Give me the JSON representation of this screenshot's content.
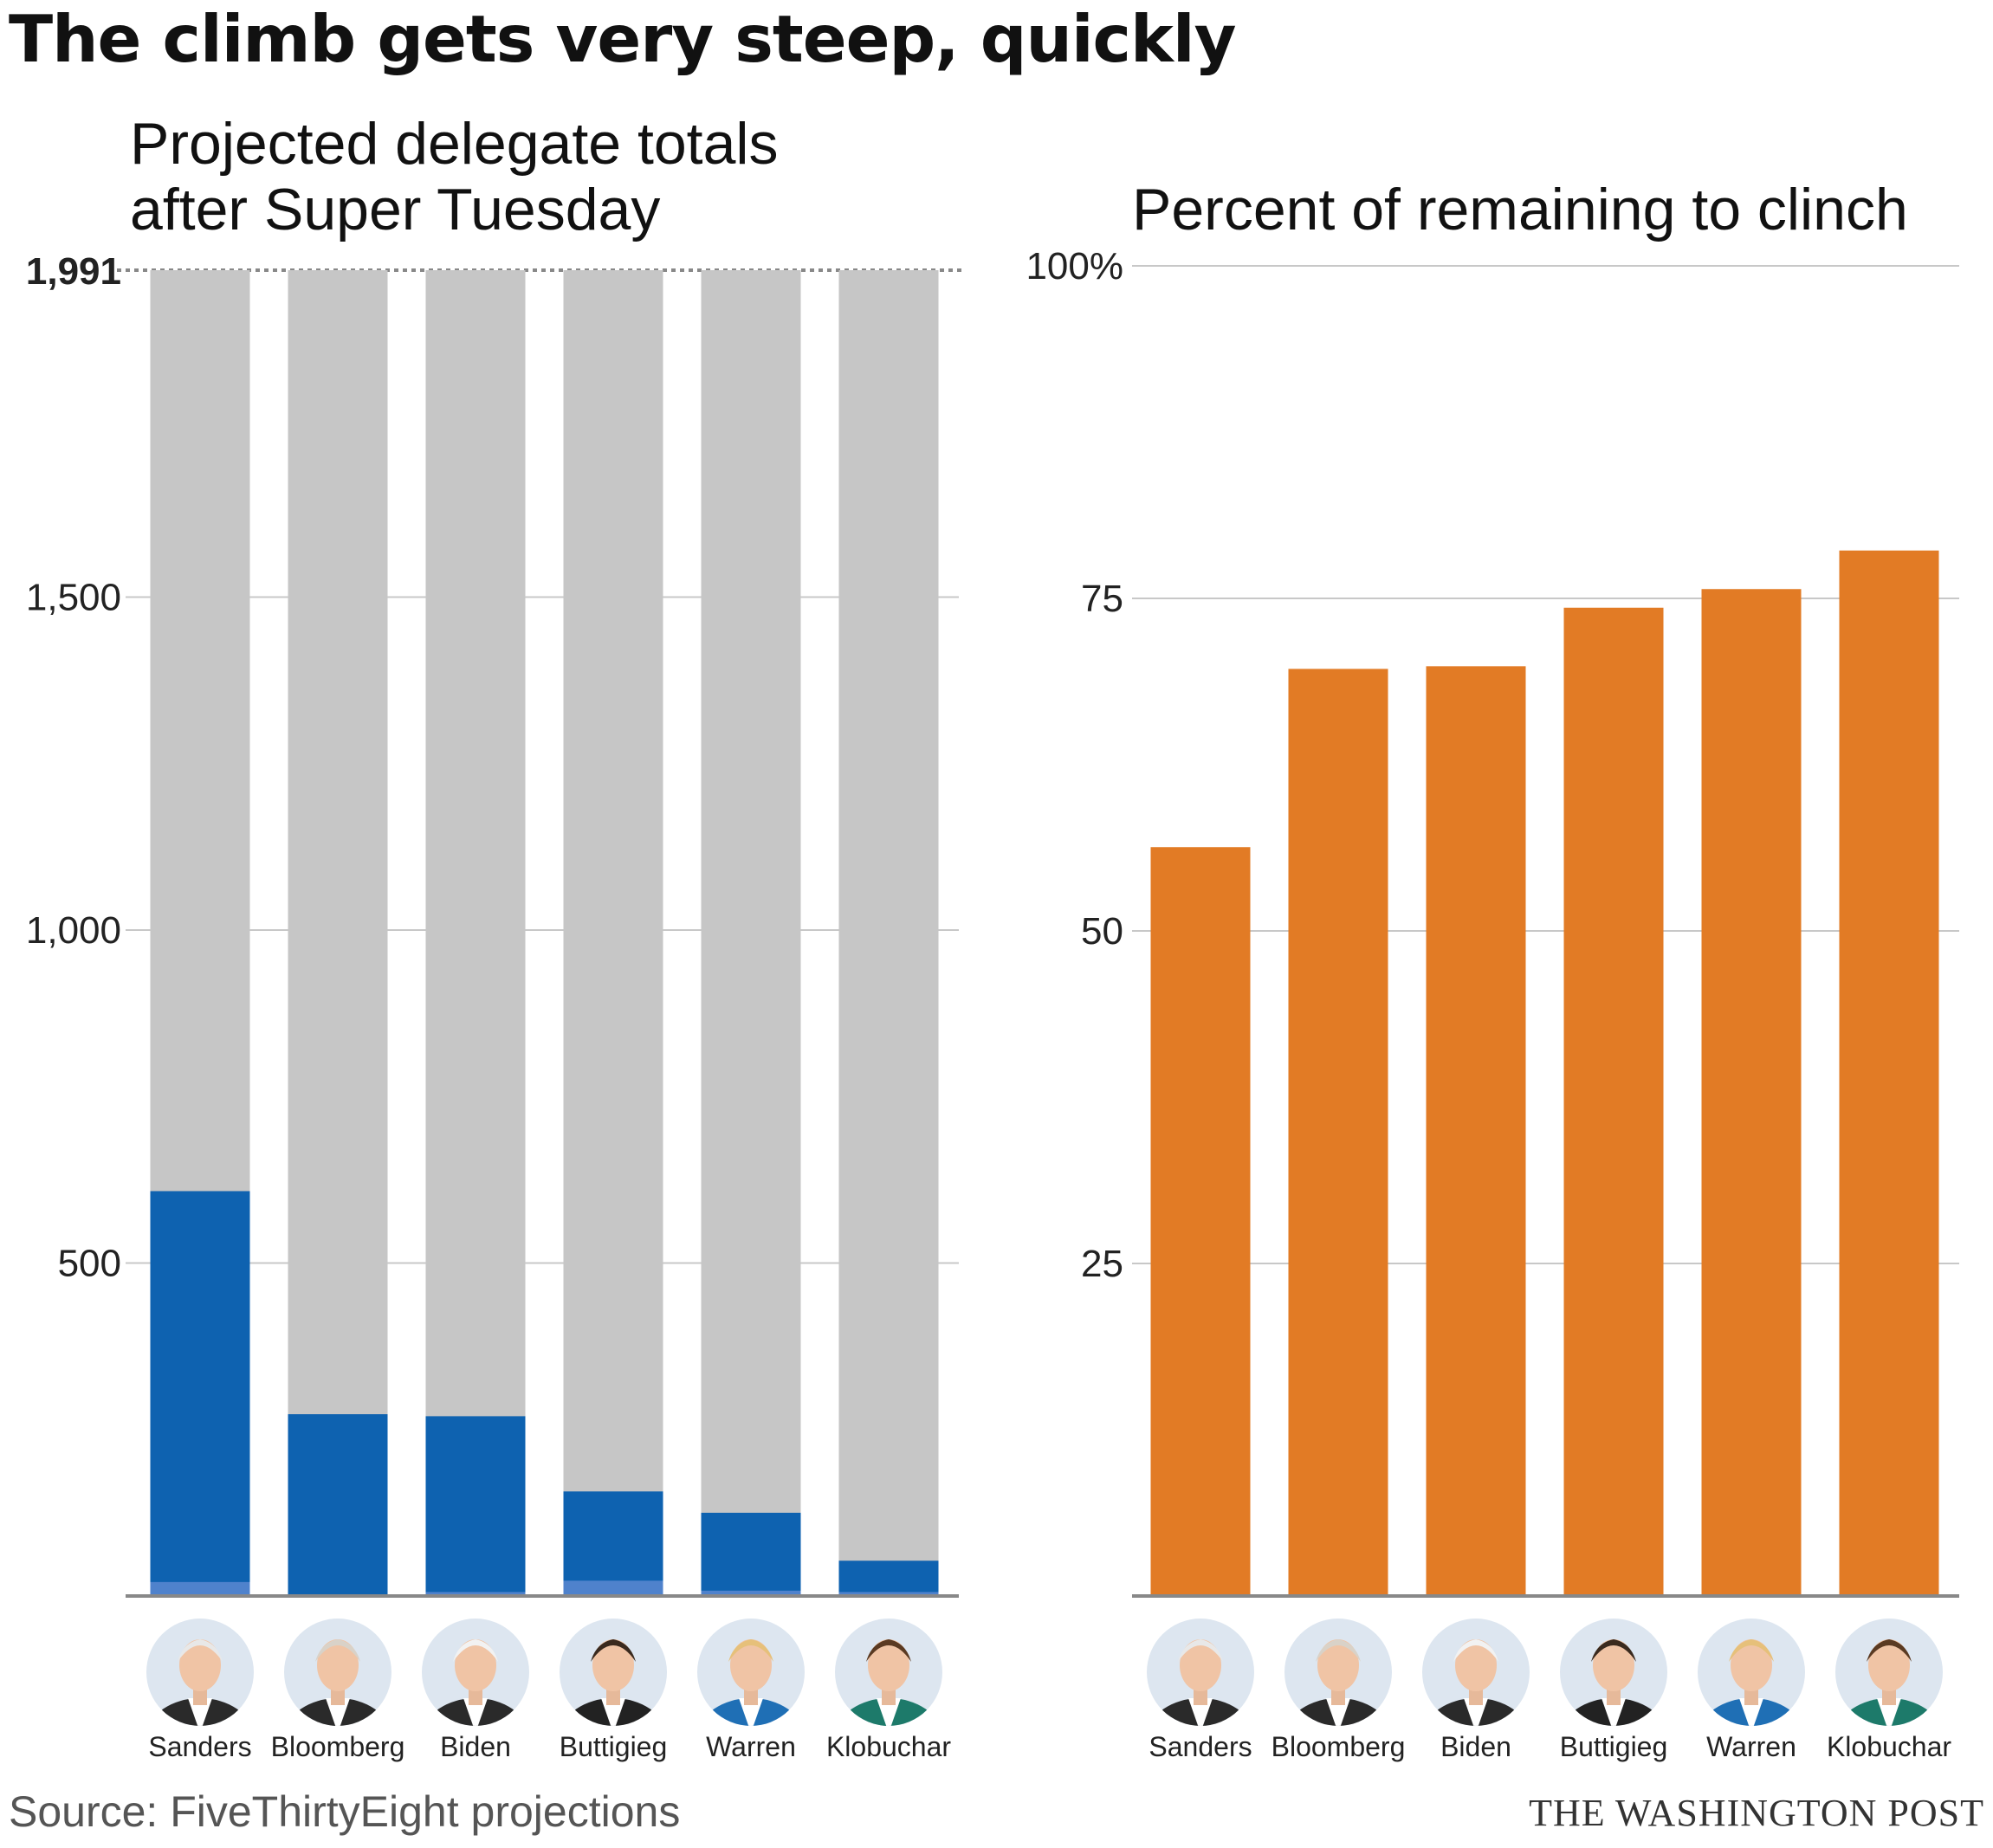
{
  "headline": "The climb gets very steep, quickly",
  "source": "Source: FiveThirtyEight projections",
  "credit": "THE WASHINGTON POST",
  "colors": {
    "remaining": "#c6c6c6",
    "projected": "#0e62b0",
    "won_so_far": "#4f82cc",
    "percent_bar": "#e27b25",
    "grid": "#c8c8c8",
    "axis": "#888888",
    "avatar_bg": "#dde6f0"
  },
  "candidates": [
    "Sanders",
    "Bloomberg",
    "Biden",
    "Buttigieg",
    "Warren",
    "Klobuchar"
  ],
  "chart_data": [
    {
      "type": "bar",
      "title": "Projected delegate totals\nafter Super Tuesday",
      "categories": [
        "Sanders",
        "Bloomberg",
        "Biden",
        "Buttigieg",
        "Warren",
        "Klobuchar"
      ],
      "clinch_threshold": 1991,
      "clinch_label": "1,991",
      "ylim": [
        0,
        1991
      ],
      "yticks": [
        500,
        1000,
        1500
      ],
      "ytick_labels": [
        "500",
        "1,000",
        "1,500"
      ],
      "series": [
        {
          "values": [
            21,
            1,
            6,
            23,
            8,
            6
          ]
        },
        {
          "values": [
            608,
            273,
            270,
            157,
            125,
            53
          ]
        },
        {
          "values": [
            1991,
            1991,
            1991,
            1991,
            1991,
            1991
          ]
        }
      ],
      "grid": true
    },
    {
      "type": "bar",
      "title": "Percent of remaining to clinch",
      "categories": [
        "Sanders",
        "Bloomberg",
        "Biden",
        "Buttigieg",
        "Warren",
        "Klobuchar"
      ],
      "values": [
        56.3,
        69.7,
        69.9,
        74.3,
        75.7,
        78.6
      ],
      "ylim": [
        0,
        100
      ],
      "yticks": [
        25,
        50,
        75,
        100
      ],
      "ytick_labels": [
        "25",
        "50",
        "75",
        "100%"
      ],
      "grid": true
    }
  ]
}
